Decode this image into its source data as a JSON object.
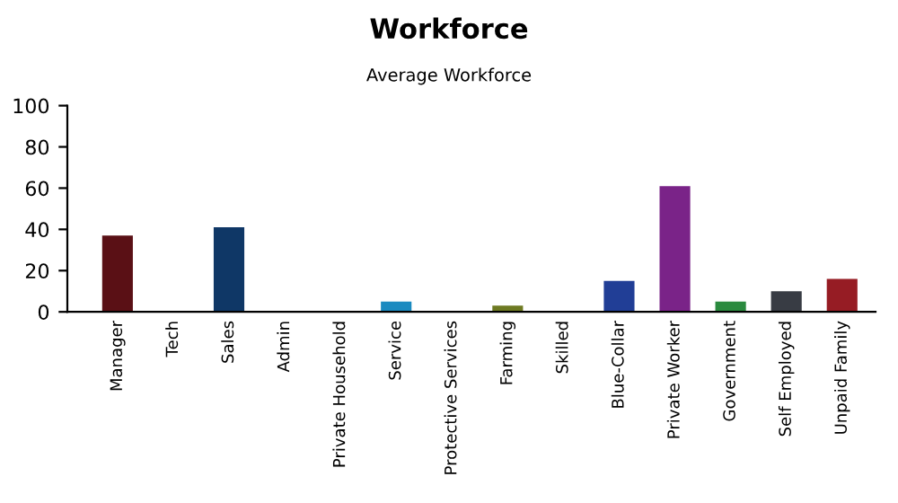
{
  "chart_data": {
    "type": "bar",
    "title": "Workforce",
    "subtitle": "Average Workforce",
    "categories": [
      "Manager",
      "Tech",
      "Sales",
      "Admin",
      "Private Household",
      "Service",
      "Protective Services",
      "Farming",
      "Skilled",
      "Blue-Collar",
      "Private Worker",
      "Government",
      "Self Employed",
      "Unpaid Family"
    ],
    "values": [
      37,
      0,
      41,
      0,
      0,
      5,
      0,
      3,
      0,
      15,
      61,
      5,
      10,
      16
    ],
    "colors": [
      "#5a1015",
      "#888888",
      "#0f3766",
      "#888888",
      "#888888",
      "#1a8ac0",
      "#888888",
      "#6e7a22",
      "#888888",
      "#213e96",
      "#7a2388",
      "#2a8a3e",
      "#383c44",
      "#961c24"
    ],
    "ylim": [
      0,
      100
    ],
    "yticks": [
      0,
      20,
      40,
      60,
      80,
      100
    ],
    "grid": false
  }
}
